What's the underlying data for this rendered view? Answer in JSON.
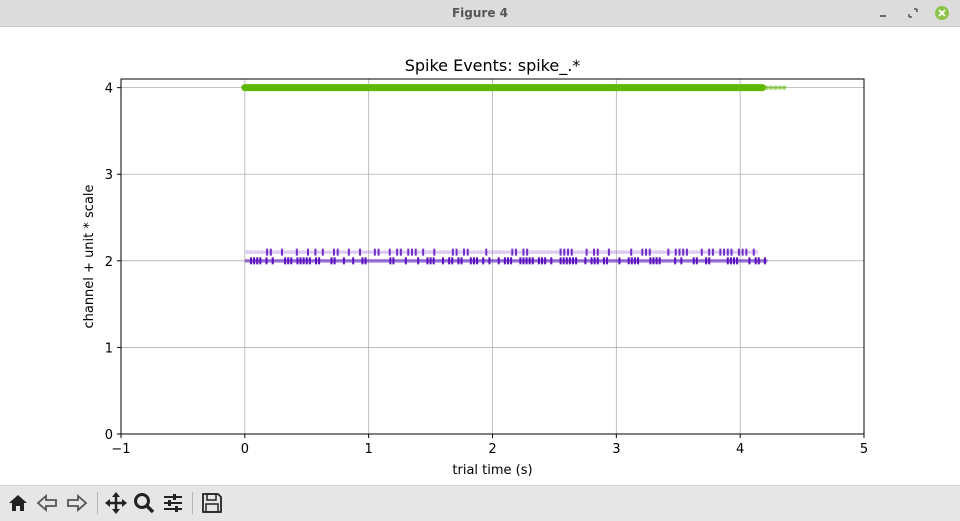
{
  "window": {
    "title": "Figure 4"
  },
  "toolbar": {
    "icons": [
      "home-icon",
      "back-icon",
      "forward-icon",
      "pan-icon",
      "zoom-icon",
      "configure-subplots-icon",
      "save-icon"
    ]
  },
  "colors": {
    "green": "#5cb800",
    "purple": "#5a0fc0",
    "purple_faint": "#8a5ad6"
  },
  "chart_data": {
    "type": "scatter",
    "title": "Spike Events: spike_.*",
    "xlabel": "trial time (s)",
    "ylabel": "channel + unit * scale",
    "xlim": [
      -1,
      5
    ],
    "ylim": [
      0,
      4.1
    ],
    "xticks": [
      "−1",
      "0",
      "1",
      "2",
      "3",
      "4",
      "5"
    ],
    "yticks": [
      "0",
      "1",
      "2",
      "3",
      "4"
    ],
    "grid": true,
    "series": [
      {
        "y": 4.0,
        "x_start": 0.0,
        "x_end": 4.38,
        "dense_until": 4.18,
        "style": "dense-dots",
        "color": "#5cb800"
      },
      {
        "y": 2.1,
        "x_start": 0.02,
        "x_end": 4.15,
        "style": "sparse-bars",
        "color": "#8a5ad6"
      },
      {
        "y": 2.0,
        "x_start": 0.0,
        "x_end": 4.22,
        "style": "dense-bars",
        "color": "#5a0fc0"
      }
    ]
  }
}
